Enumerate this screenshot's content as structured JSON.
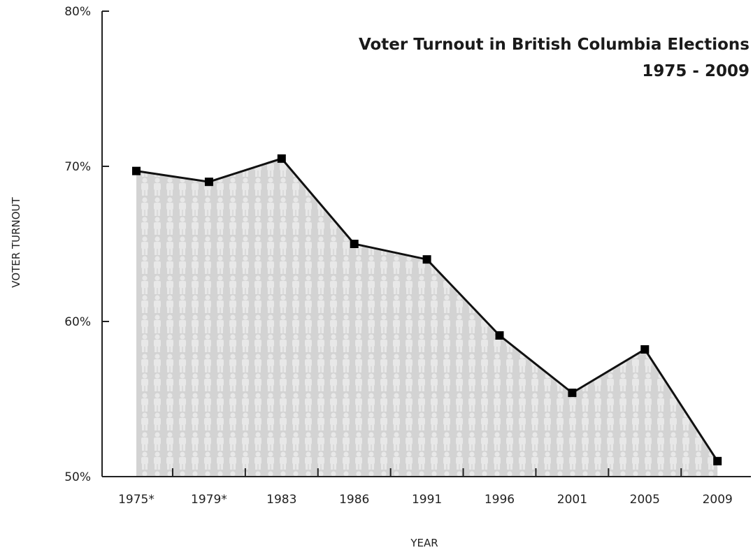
{
  "chart_data": {
    "type": "area",
    "title": "Voter Turnout in British Columbia Elections",
    "subtitle": "1975 - 2009",
    "xlabel": "YEAR",
    "ylabel": "VOTER TURNOUT",
    "categories": [
      "1975*",
      "1979*",
      "1983",
      "1986",
      "1991",
      "1996",
      "2001",
      "2005",
      "2009"
    ],
    "values": [
      69.7,
      69.0,
      70.5,
      65.0,
      64.0,
      59.1,
      55.4,
      58.2,
      51.0
    ],
    "ylim": [
      50,
      80
    ],
    "yticks": [
      50,
      60,
      70,
      80
    ],
    "ytick_labels": [
      "50%",
      "60%",
      "70%",
      "80%"
    ],
    "grid": false,
    "legend": "none",
    "fill_pattern": "person-silhouettes",
    "colors": {
      "line": "#111111",
      "marker": "#000000",
      "fill_background": "#d3d3d3",
      "fill_figures": "#e8e8e8",
      "axis": "#222222",
      "text": "#222222"
    }
  }
}
